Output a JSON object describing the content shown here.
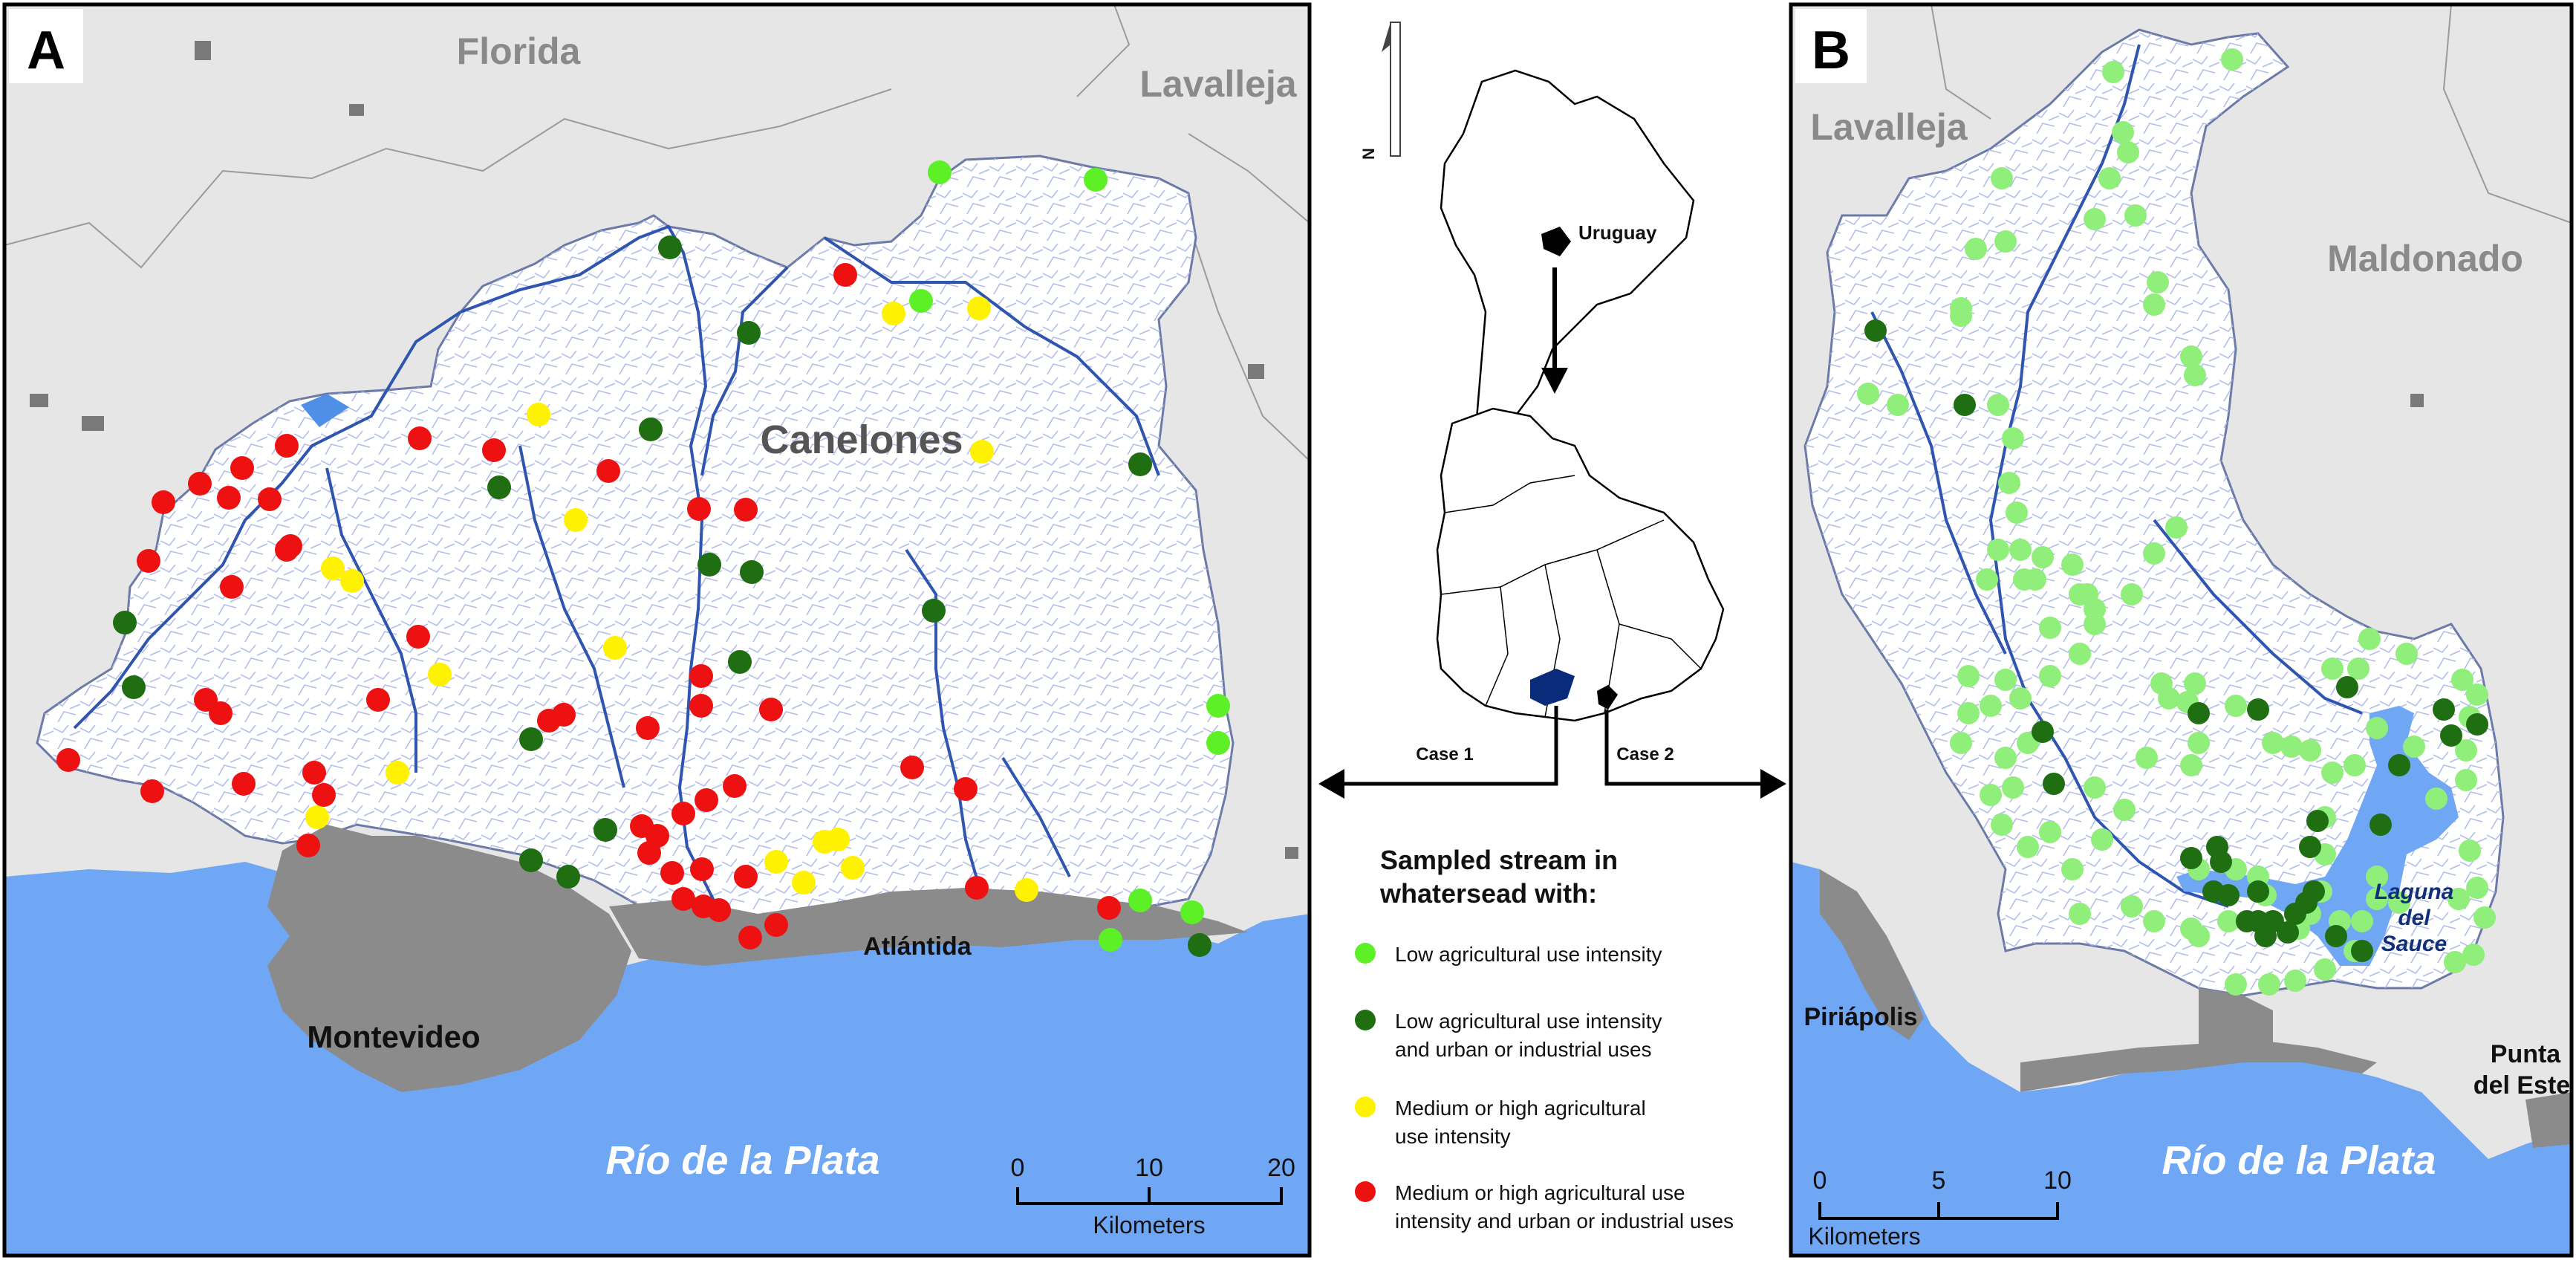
{
  "panel_a": {
    "letter": "A",
    "regions": {
      "florida": "Florida",
      "lavalleja": "Lavalleja",
      "canelones": "Canelones"
    },
    "cities": {
      "montevideo": "Montevideo",
      "atlantida": "Atlántida"
    },
    "water": "Río de la Plata",
    "scale": {
      "ticks": [
        "0",
        "10",
        "20"
      ],
      "unit": "Kilometers"
    },
    "points": {
      "low": [
        [
          1265,
          232
        ],
        [
          1475,
          242
        ],
        [
          1240,
          405
        ],
        [
          1640,
          1000
        ],
        [
          1535,
          1212
        ],
        [
          1605,
          1228
        ],
        [
          1495,
          1265
        ],
        [
          1640,
          950
        ]
      ],
      "low_urban": [
        [
          902,
          333
        ],
        [
          1008,
          448
        ],
        [
          876,
          578
        ],
        [
          1535,
          625
        ],
        [
          672,
          656
        ],
        [
          955,
          760
        ],
        [
          1012,
          770
        ],
        [
          1257,
          822
        ],
        [
          168,
          838
        ],
        [
          180,
          925
        ],
        [
          996,
          891
        ],
        [
          715,
          995
        ],
        [
          815,
          1117
        ],
        [
          715,
          1158
        ],
        [
          765,
          1180
        ],
        [
          1615,
          1272
        ]
      ],
      "med_high": [
        [
          725,
          558
        ],
        [
          1318,
          415
        ],
        [
          1203,
          422
        ],
        [
          1322,
          608
        ],
        [
          775,
          700
        ],
        [
          448,
          765
        ],
        [
          474,
          782
        ],
        [
          828,
          872
        ],
        [
          592,
          908
        ],
        [
          535,
          1040
        ],
        [
          427,
          1100
        ],
        [
          1110,
          1133
        ],
        [
          1045,
          1160
        ],
        [
          1128,
          1130
        ],
        [
          1082,
          1188
        ],
        [
          1148,
          1168
        ],
        [
          1382,
          1198
        ]
      ],
      "med_high_urban": [
        [
          1138,
          370
        ],
        [
          386,
          600
        ],
        [
          565,
          590
        ],
        [
          665,
          606
        ],
        [
          326,
          630
        ],
        [
          269,
          651
        ],
        [
          819,
          634
        ],
        [
          363,
          672
        ],
        [
          941,
          685
        ],
        [
          1004,
          686
        ],
        [
          220,
          676
        ],
        [
          308,
          670
        ],
        [
          391,
          735
        ],
        [
          386,
          740
        ],
        [
          200,
          755
        ],
        [
          312,
          790
        ],
        [
          563,
          857
        ],
        [
          944,
          910
        ],
        [
          509,
          942
        ],
        [
          944,
          950
        ],
        [
          277,
          942
        ],
        [
          297,
          960
        ],
        [
          739,
          970
        ],
        [
          759,
          962
        ],
        [
          872,
          980
        ],
        [
          1038,
          955
        ],
        [
          92,
          1023
        ],
        [
          205,
          1065
        ],
        [
          328,
          1055
        ],
        [
          1228,
          1033
        ],
        [
          423,
          1040
        ],
        [
          1300,
          1062
        ],
        [
          436,
          1070
        ],
        [
          989,
          1058
        ],
        [
          415,
          1138
        ],
        [
          951,
          1077
        ],
        [
          920,
          1095
        ],
        [
          864,
          1112
        ],
        [
          885,
          1125
        ],
        [
          874,
          1148
        ],
        [
          1004,
          1180
        ],
        [
          905,
          1175
        ],
        [
          945,
          1170
        ],
        [
          920,
          1210
        ],
        [
          947,
          1220
        ],
        [
          968,
          1225
        ],
        [
          1045,
          1245
        ],
        [
          1010,
          1262
        ],
        [
          1315,
          1195
        ],
        [
          1493,
          1222
        ]
      ]
    }
  },
  "inset": {
    "country": "Uruguay",
    "case1": "Case 1",
    "case2": "Case 2",
    "north": "N"
  },
  "legend": {
    "title_line1": "Sampled stream in",
    "title_line2": "whatersead with:",
    "items": [
      {
        "line1": "Low agricultural use intensity",
        "line2": "",
        "color": "#5df026"
      },
      {
        "line1": "Low agricultural use intensity",
        "line2": "and urban or industrial uses",
        "color": "#1f6e12"
      },
      {
        "line1": "Medium or high agricultural",
        "line2": "use intensity",
        "color": "#fff200"
      },
      {
        "line1": "Medium or high agricultural use",
        "line2": "intensity and urban or industrial uses",
        "color": "#ee1111"
      }
    ]
  },
  "panel_b": {
    "letter": "B",
    "regions": {
      "lavalleja": "Lavalleja",
      "maldonado": "Maldonado"
    },
    "cities": {
      "piriapolis": "Piriápolis",
      "punta_line1": "Punta",
      "punta_line2": "del Este"
    },
    "lake_line1": "Laguna",
    "lake_line2": "del",
    "lake_line3": "Sauce",
    "water": "Río de la Plata",
    "scale": {
      "ticks": [
        "0",
        "5",
        "10"
      ],
      "unit": "Kilometers"
    },
    "points": {
      "low": [
        [
          2845,
          97
        ],
        [
          3005,
          80
        ],
        [
          2858,
          178
        ],
        [
          2865,
          205
        ],
        [
          2840,
          240
        ],
        [
          2875,
          290
        ],
        [
          2820,
          295
        ],
        [
          2695,
          240
        ],
        [
          2660,
          335
        ],
        [
          2700,
          325
        ],
        [
          2640,
          415
        ],
        [
          2640,
          425
        ],
        [
          2905,
          380
        ],
        [
          2900,
          410
        ],
        [
          2950,
          480
        ],
        [
          2955,
          505
        ],
        [
          2515,
          530
        ],
        [
          2555,
          545
        ],
        [
          2690,
          545
        ],
        [
          2710,
          590
        ],
        [
          2705,
          650
        ],
        [
          2715,
          690
        ],
        [
          2720,
          740
        ],
        [
          2725,
          780
        ],
        [
          2930,
          710
        ],
        [
          2900,
          745
        ],
        [
          2690,
          740
        ],
        [
          2675,
          780
        ],
        [
          2750,
          750
        ],
        [
          2790,
          760
        ],
        [
          2810,
          800
        ],
        [
          2820,
          820
        ],
        [
          2740,
          780
        ],
        [
          2760,
          845
        ],
        [
          2800,
          800
        ],
        [
          2870,
          800
        ],
        [
          2820,
          840
        ],
        [
          2800,
          880
        ],
        [
          2760,
          910
        ],
        [
          2700,
          915
        ],
        [
          2650,
          910
        ],
        [
          2680,
          950
        ],
        [
          2720,
          940
        ],
        [
          2700,
          1020
        ],
        [
          2730,
          1000
        ],
        [
          2710,
          1060
        ],
        [
          2680,
          1070
        ],
        [
          2640,
          1000
        ],
        [
          2650,
          960
        ],
        [
          2695,
          1110
        ],
        [
          2730,
          1140
        ],
        [
          2760,
          1120
        ],
        [
          2790,
          1170
        ],
        [
          2800,
          1230
        ],
        [
          2870,
          1220
        ],
        [
          2900,
          1240
        ],
        [
          2950,
          1250
        ],
        [
          2960,
          1260
        ],
        [
          2830,
          1130
        ],
        [
          2820,
          1060
        ],
        [
          2860,
          1090
        ],
        [
          2890,
          1020
        ],
        [
          2950,
          1030
        ],
        [
          2960,
          1000
        ],
        [
          2945,
          945
        ],
        [
          2910,
          920
        ],
        [
          2920,
          940
        ],
        [
          2955,
          920
        ],
        [
          3010,
          950
        ],
        [
          3060,
          1000
        ],
        [
          3085,
          1005
        ],
        [
          3110,
          1010
        ],
        [
          3140,
          1040
        ],
        [
          3170,
          1030
        ],
        [
          3200,
          980
        ],
        [
          3250,
          1005
        ],
        [
          3280,
          1075
        ],
        [
          3320,
          1050
        ],
        [
          3320,
          1010
        ],
        [
          3325,
          965
        ],
        [
          3315,
          915
        ],
        [
          3240,
          880
        ],
        [
          3190,
          860
        ],
        [
          3140,
          900
        ],
        [
          3175,
          900
        ],
        [
          3335,
          935
        ],
        [
          3325,
          1145
        ],
        [
          3335,
          1195
        ],
        [
          3345,
          1235
        ],
        [
          3305,
          1295
        ],
        [
          3330,
          1285
        ],
        [
          3310,
          1210
        ],
        [
          3200,
          1210
        ],
        [
          3010,
          1325
        ],
        [
          3055,
          1325
        ],
        [
          3090,
          1320
        ],
        [
          3130,
          1305
        ],
        [
          3170,
          1280
        ],
        [
          3150,
          1240
        ],
        [
          3180,
          1240
        ],
        [
          3230,
          1215
        ],
        [
          3200,
          1180
        ],
        [
          3095,
          1250
        ],
        [
          3110,
          1230
        ],
        [
          3125,
          1200
        ],
        [
          3130,
          1150
        ],
        [
          3130,
          1100
        ],
        [
          3050,
          1205
        ],
        [
          3040,
          1180
        ],
        [
          3010,
          1170
        ],
        [
          3000,
          1240
        ],
        [
          2960,
          1170
        ]
      ],
      "low_urban": [
        [
          2525,
          445
        ],
        [
          2645,
          545
        ],
        [
          2750,
          985
        ],
        [
          2765,
          1055
        ],
        [
          2960,
          960
        ],
        [
          3040,
          955
        ],
        [
          2950,
          1155
        ],
        [
          2990,
          1160
        ],
        [
          3120,
          1105
        ],
        [
          3110,
          1140
        ],
        [
          3115,
          1200
        ],
        [
          3040,
          1200
        ],
        [
          3040,
          1240
        ],
        [
          3050,
          1260
        ],
        [
          3090,
          1230
        ],
        [
          3145,
          1260
        ],
        [
          3180,
          1280
        ],
        [
          3080,
          1255
        ],
        [
          3000,
          1205
        ],
        [
          2980,
          1200
        ],
        [
          3230,
          1030
        ],
        [
          3290,
          955
        ],
        [
          3335,
          975
        ],
        [
          3160,
          925
        ],
        [
          3205,
          1110
        ],
        [
          3300,
          990
        ],
        [
          3025,
          1240
        ],
        [
          3060,
          1240
        ],
        [
          2985,
          1140
        ],
        [
          3105,
          1215
        ]
      ]
    }
  }
}
